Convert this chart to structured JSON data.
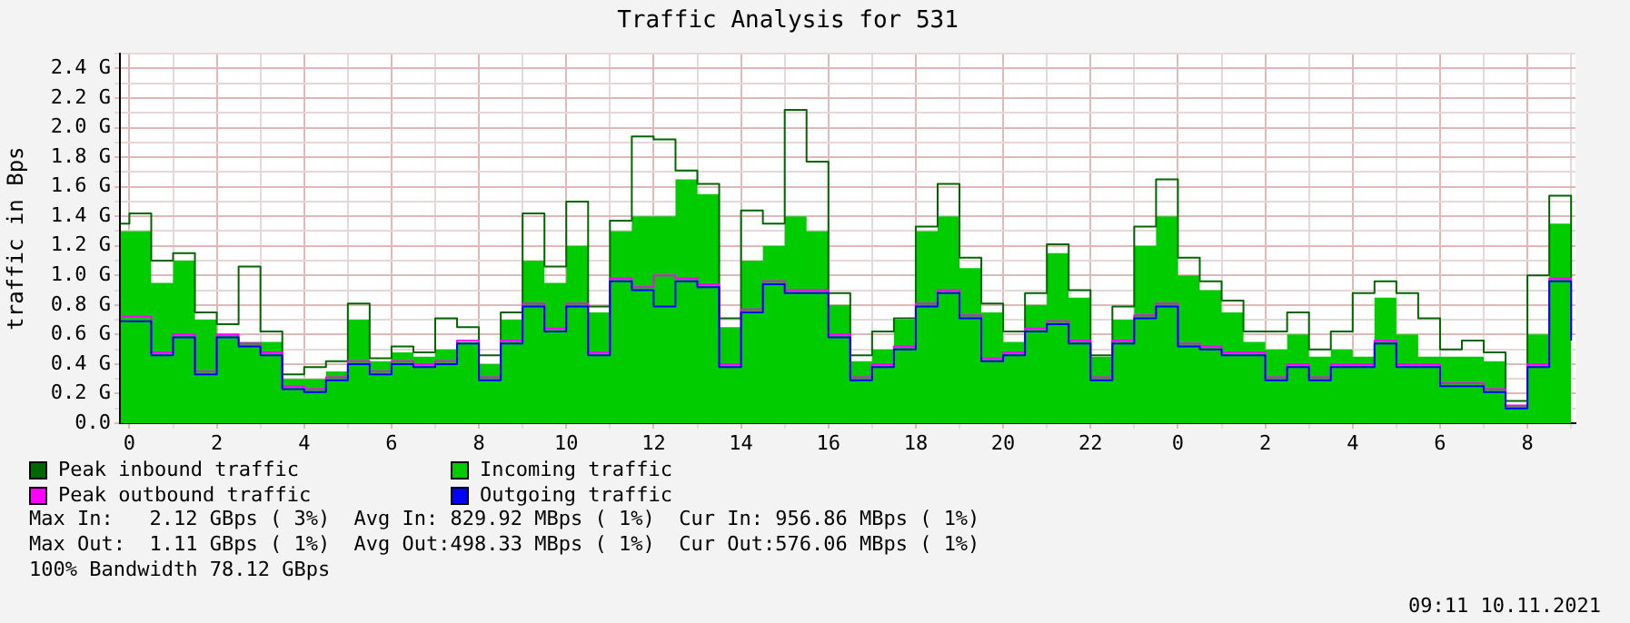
{
  "chart_data": {
    "type": "step",
    "title": "Traffic Analysis for 531",
    "ylabel": "traffic in Bps",
    "x": [
      "2021-11-08T23:48",
      "2021-11-09T00:00",
      "2021-11-09T00:30",
      "2021-11-09T01:00",
      "2021-11-09T01:30",
      "2021-11-09T02:00",
      "2021-11-09T02:30",
      "2021-11-09T03:00",
      "2021-11-09T03:30",
      "2021-11-09T04:00",
      "2021-11-09T04:30",
      "2021-11-09T05:00",
      "2021-11-09T05:30",
      "2021-11-09T06:00",
      "2021-11-09T06:30",
      "2021-11-09T07:00",
      "2021-11-09T07:30",
      "2021-11-09T08:00",
      "2021-11-09T08:30",
      "2021-11-09T09:00",
      "2021-11-09T09:30",
      "2021-11-09T10:00",
      "2021-11-09T10:30",
      "2021-11-09T11:00",
      "2021-11-09T11:30",
      "2021-11-09T12:00",
      "2021-11-09T12:30",
      "2021-11-09T13:00",
      "2021-11-09T13:30",
      "2021-11-09T14:00",
      "2021-11-09T14:30",
      "2021-11-09T15:00",
      "2021-11-09T15:30",
      "2021-11-09T16:00",
      "2021-11-09T16:30",
      "2021-11-09T17:00",
      "2021-11-09T17:30",
      "2021-11-09T18:00",
      "2021-11-09T18:30",
      "2021-11-09T19:00",
      "2021-11-09T19:30",
      "2021-11-09T20:00",
      "2021-11-09T20:30",
      "2021-11-09T21:00",
      "2021-11-09T21:30",
      "2021-11-09T22:00",
      "2021-11-09T22:30",
      "2021-11-09T23:00",
      "2021-11-09T23:30",
      "2021-11-10T00:00",
      "2021-11-10T00:30",
      "2021-11-10T01:00",
      "2021-11-10T01:30",
      "2021-11-10T02:00",
      "2021-11-10T02:30",
      "2021-11-10T03:00",
      "2021-11-10T03:30",
      "2021-11-10T04:00",
      "2021-11-10T04:30",
      "2021-11-10T05:00",
      "2021-11-10T05:30",
      "2021-11-10T06:00",
      "2021-11-10T06:30",
      "2021-11-10T07:00",
      "2021-11-10T07:30",
      "2021-11-10T08:00",
      "2021-11-10T08:30",
      "2021-11-10T09:00"
    ],
    "series": [
      {
        "name": "Peak inbound traffic",
        "color": "#006600",
        "values": [
          1.35,
          1.42,
          1.1,
          1.15,
          0.75,
          0.67,
          1.06,
          0.62,
          0.33,
          0.38,
          0.42,
          0.81,
          0.44,
          0.52,
          0.48,
          0.71,
          0.65,
          0.46,
          0.75,
          1.42,
          1.06,
          1.5,
          0.79,
          1.37,
          1.94,
          1.92,
          1.71,
          1.62,
          0.71,
          1.44,
          1.35,
          2.12,
          1.77,
          0.88,
          0.46,
          0.62,
          0.71,
          1.33,
          1.62,
          1.12,
          0.81,
          0.62,
          0.88,
          1.21,
          0.9,
          0.46,
          0.79,
          1.33,
          1.65,
          1.12,
          0.96,
          0.83,
          0.62,
          0.62,
          0.75,
          0.5,
          0.62,
          0.88,
          0.96,
          0.88,
          0.71,
          0.5,
          0.56,
          0.48,
          0.15,
          1.0,
          1.54,
          0.98
        ]
      },
      {
        "name": "Incoming traffic",
        "type": "area",
        "color": "#00cc00",
        "values": [
          1.3,
          1.3,
          0.95,
          1.1,
          0.7,
          0.6,
          0.55,
          0.55,
          0.3,
          0.3,
          0.35,
          0.7,
          0.42,
          0.48,
          0.45,
          0.5,
          0.55,
          0.4,
          0.7,
          1.1,
          0.95,
          1.2,
          0.75,
          1.3,
          1.4,
          1.4,
          1.65,
          1.55,
          0.65,
          1.1,
          1.2,
          1.4,
          1.3,
          0.8,
          0.42,
          0.5,
          0.7,
          1.3,
          1.4,
          1.05,
          0.75,
          0.55,
          0.8,
          1.15,
          0.85,
          0.45,
          0.7,
          1.2,
          1.4,
          1.0,
          0.9,
          0.75,
          0.55,
          0.5,
          0.6,
          0.45,
          0.5,
          0.45,
          0.85,
          0.6,
          0.45,
          0.45,
          0.45,
          0.42,
          0.12,
          0.6,
          1.35,
          0.95
        ]
      },
      {
        "name": "Peak outbound traffic",
        "color": "#ff00ff",
        "values": [
          0.72,
          0.72,
          0.48,
          0.6,
          0.35,
          0.6,
          0.54,
          0.48,
          0.25,
          0.23,
          0.31,
          0.42,
          0.35,
          0.42,
          0.4,
          0.42,
          0.56,
          0.31,
          0.56,
          0.81,
          0.64,
          0.81,
          0.48,
          0.98,
          0.92,
          1.0,
          0.98,
          0.94,
          0.4,
          0.77,
          0.96,
          0.9,
          0.9,
          0.6,
          0.31,
          0.4,
          0.52,
          0.81,
          0.9,
          0.73,
          0.44,
          0.48,
          0.64,
          0.69,
          0.56,
          0.31,
          0.56,
          0.73,
          0.81,
          0.54,
          0.52,
          0.48,
          0.48,
          0.31,
          0.4,
          0.31,
          0.4,
          0.4,
          0.56,
          0.4,
          0.4,
          0.27,
          0.27,
          0.23,
          0.12,
          0.4,
          0.98,
          0.58
        ]
      },
      {
        "name": "Outgoing traffic",
        "color": "#0000ff",
        "values": [
          0.69,
          0.69,
          0.46,
          0.58,
          0.33,
          0.58,
          0.52,
          0.46,
          0.23,
          0.21,
          0.29,
          0.4,
          0.33,
          0.4,
          0.38,
          0.4,
          0.54,
          0.29,
          0.54,
          0.79,
          0.62,
          0.79,
          0.46,
          0.96,
          0.9,
          0.79,
          0.96,
          0.92,
          0.38,
          0.75,
          0.94,
          0.88,
          0.88,
          0.58,
          0.29,
          0.38,
          0.5,
          0.79,
          0.88,
          0.71,
          0.42,
          0.46,
          0.62,
          0.67,
          0.54,
          0.29,
          0.54,
          0.71,
          0.79,
          0.52,
          0.5,
          0.46,
          0.46,
          0.29,
          0.38,
          0.29,
          0.38,
          0.38,
          0.54,
          0.38,
          0.38,
          0.25,
          0.25,
          0.21,
          0.1,
          0.38,
          0.96,
          0.56
        ]
      }
    ],
    "xlim": [
      "2021-11-08T23:47",
      "2021-11-10T09:06"
    ],
    "xticks": [
      {
        "value": "2021-11-09T00:00",
        "label": "0"
      },
      {
        "value": "2021-11-09T01:00",
        "label": null
      },
      {
        "value": "2021-11-09T02:00",
        "label": "2"
      },
      {
        "value": "2021-11-09T03:00",
        "label": null
      },
      {
        "value": "2021-11-09T04:00",
        "label": "4"
      },
      {
        "value": "2021-11-09T05:00",
        "label": null
      },
      {
        "value": "2021-11-09T06:00",
        "label": "6"
      },
      {
        "value": "2021-11-09T07:00",
        "label": null
      },
      {
        "value": "2021-11-09T08:00",
        "label": "8"
      },
      {
        "value": "2021-11-09T09:00",
        "label": null
      },
      {
        "value": "2021-11-09T10:00",
        "label": "10"
      },
      {
        "value": "2021-11-09T11:00",
        "label": null
      },
      {
        "value": "2021-11-09T12:00",
        "label": "12"
      },
      {
        "value": "2021-11-09T13:00",
        "label": null
      },
      {
        "value": "2021-11-09T14:00",
        "label": "14"
      },
      {
        "value": "2021-11-09T15:00",
        "label": null
      },
      {
        "value": "2021-11-09T16:00",
        "label": "16"
      },
      {
        "value": "2021-11-09T17:00",
        "label": null
      },
      {
        "value": "2021-11-09T18:00",
        "label": "18"
      },
      {
        "value": "2021-11-09T19:00",
        "label": null
      },
      {
        "value": "2021-11-09T20:00",
        "label": "20"
      },
      {
        "value": "2021-11-09T21:00",
        "label": null
      },
      {
        "value": "2021-11-09T22:00",
        "label": "22"
      },
      {
        "value": "2021-11-09T23:00",
        "label": null
      },
      {
        "value": "2021-11-10T00:00",
        "label": "0"
      },
      {
        "value": "2021-11-10T01:00",
        "label": null
      },
      {
        "value": "2021-11-10T02:00",
        "label": "2"
      },
      {
        "value": "2021-11-10T03:00",
        "label": null
      },
      {
        "value": "2021-11-10T04:00",
        "label": "4"
      },
      {
        "value": "2021-11-10T05:00",
        "label": null
      },
      {
        "value": "2021-11-10T06:00",
        "label": "6"
      },
      {
        "value": "2021-11-10T07:00",
        "label": null
      },
      {
        "value": "2021-11-10T08:00",
        "label": "8"
      },
      {
        "value": "2021-11-10T09:00",
        "label": null
      }
    ],
    "ylim": [
      0,
      2.5
    ],
    "yticks": [
      {
        "value": 0,
        "label": "0.0"
      },
      {
        "value": 0.1,
        "label": null
      },
      {
        "value": 0.2,
        "label": "0.2 G"
      },
      {
        "value": 0.3,
        "label": null
      },
      {
        "value": 0.4,
        "label": "0.4 G"
      },
      {
        "value": 0.5,
        "label": null
      },
      {
        "value": 0.6,
        "label": "0.6 G"
      },
      {
        "value": 0.7,
        "label": null
      },
      {
        "value": 0.8,
        "label": "0.8 G"
      },
      {
        "value": 0.9,
        "label": null
      },
      {
        "value": 1.0,
        "label": "1.0 G"
      },
      {
        "value": 1.1,
        "label": null
      },
      {
        "value": 1.2,
        "label": "1.2 G"
      },
      {
        "value": 1.3,
        "label": null
      },
      {
        "value": 1.4,
        "label": "1.4 G"
      },
      {
        "value": 1.5,
        "label": null
      },
      {
        "value": 1.6,
        "label": "1.6 G"
      },
      {
        "value": 1.7,
        "label": null
      },
      {
        "value": 1.8,
        "label": "1.8 G"
      },
      {
        "value": 1.9,
        "label": null
      },
      {
        "value": 2.0,
        "label": "2.0 G"
      },
      {
        "value": 2.1,
        "label": null
      },
      {
        "value": 2.2,
        "label": "2.2 G"
      },
      {
        "value": 2.3,
        "label": null
      },
      {
        "value": 2.4,
        "label": "2.4 G"
      },
      {
        "value": 2.5,
        "label": null
      }
    ],
    "grid": true,
    "legend": "bottom",
    "annotations": [
      "Max In:   2.12 GBps ( 3%)  Avg In: 829.92 MBps ( 1%)  Cur In: 956.86 MBps ( 1%)",
      "Max Out:  1.11 GBps ( 1%)  Avg Out:498.33 MBps ( 1%)  Cur Out:576.06 MBps ( 1%)",
      "100% Bandwidth 78.12 GBps",
      "09:11 10.11.2021"
    ]
  }
}
